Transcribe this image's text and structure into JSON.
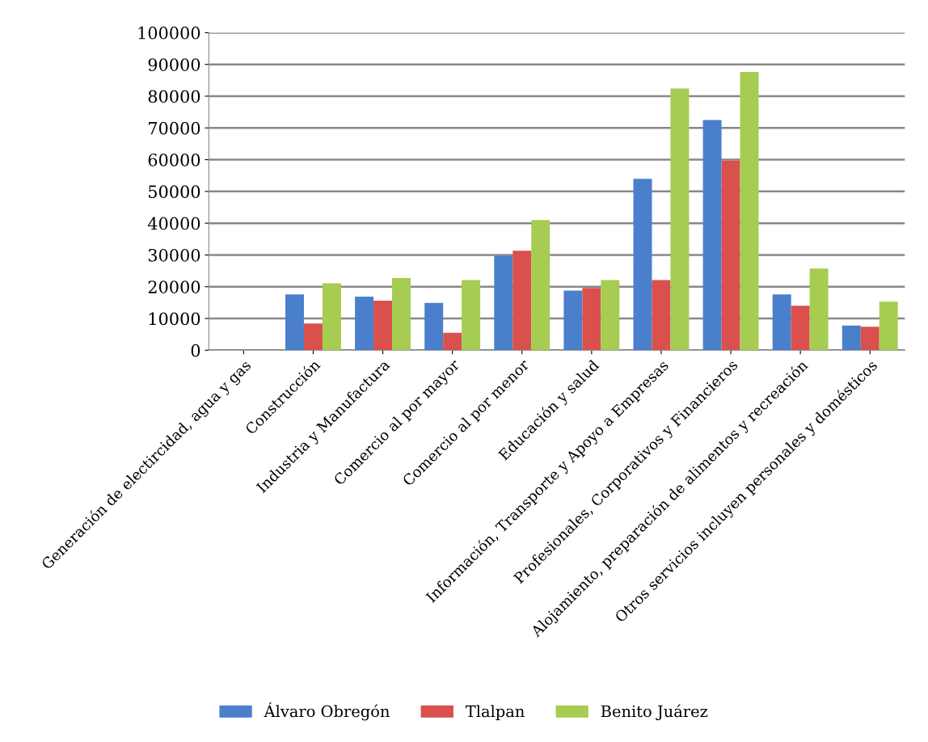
{
  "chart_data": {
    "type": "bar",
    "categories": [
      "Generación de electircidad, agua y gas",
      "Construcción",
      "Industria y Manufactura",
      "Comercio al por mayor",
      "Comercio al por menor",
      "Educación y salud",
      "Información, Transporte y Apoyo a Empresas",
      "Profesionales, Corporativos y Financieros",
      "Alojamiento, preparación de alimentos y recreación",
      "Otros servicios incluyen personales y domésticos"
    ],
    "series": [
      {
        "name": "Álvaro Obregón",
        "color": "#4a7fcc",
        "values": [
          0,
          17600,
          16900,
          14900,
          29800,
          18800,
          54000,
          72500,
          17600,
          7800
        ]
      },
      {
        "name": "Tlalpan",
        "color": "#d9504c",
        "values": [
          0,
          8400,
          15600,
          5500,
          31300,
          19600,
          22100,
          59700,
          14000,
          7400
        ]
      },
      {
        "name": "Benito Juárez",
        "color": "#a6cc52",
        "values": [
          0,
          21100,
          22700,
          22100,
          41000,
          22100,
          82400,
          87600,
          25700,
          15300
        ]
      }
    ],
    "ylim": [
      0,
      100000
    ],
    "yticks": [
      0,
      10000,
      20000,
      30000,
      40000,
      50000,
      60000,
      70000,
      80000,
      90000,
      100000
    ],
    "grid": "y",
    "legend": "bottom"
  }
}
